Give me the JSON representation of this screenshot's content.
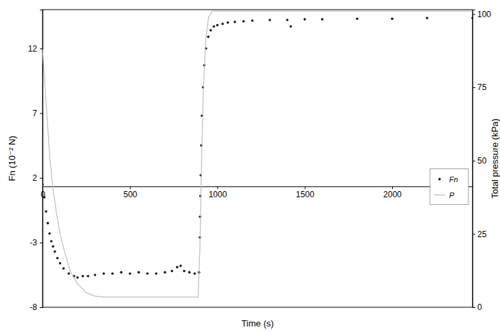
{
  "chart_data": {
    "type": "scatter",
    "x_label": "Time (s)",
    "y_label": "Fn (10⁻² N)",
    "y2_label": "Total pressure (kPa)",
    "xlim": [
      0,
      2460
    ],
    "xticks": [
      0,
      500,
      1000,
      1500,
      2000
    ],
    "ylim": [
      -8,
      15
    ],
    "yticks": [
      -8,
      -3,
      2,
      7,
      12
    ],
    "y2lim": [
      0,
      101.5
    ],
    "y2ticks": [
      0,
      25,
      50,
      75,
      100
    ],
    "grid": false,
    "legend": "right",
    "series": [
      {
        "name": "Fn",
        "type": "scatter",
        "color": "#1a1a1a",
        "marker": "circle",
        "x": [
          0,
          10,
          20,
          30,
          40,
          50,
          60,
          70,
          85,
          100,
          120,
          150,
          180,
          200,
          230,
          260,
          300,
          350,
          400,
          450,
          500,
          550,
          600,
          650,
          700,
          740,
          770,
          790,
          810,
          840,
          870,
          895,
          900,
          901,
          903,
          905,
          908,
          912,
          918,
          925,
          935,
          948,
          962,
          980,
          1000,
          1030,
          1060,
          1100,
          1150,
          1200,
          1300,
          1400,
          1420,
          1500,
          1600,
          1800,
          2000,
          2200,
          2460
        ],
        "values": [
          1.5,
          0.5,
          -0.6,
          -1.5,
          -2.3,
          -2.9,
          -3.3,
          -3.7,
          -4.2,
          -4.6,
          -5.0,
          -5.4,
          -5.6,
          -5.7,
          -5.6,
          -5.6,
          -5.5,
          -5.4,
          -5.4,
          -5.3,
          -5.4,
          -5.3,
          -5.4,
          -5.4,
          -5.3,
          -5.2,
          -4.9,
          -4.8,
          -5.2,
          -5.3,
          -5.4,
          -5.3,
          -2.6,
          -1.0,
          0.6,
          2.2,
          4.5,
          6.8,
          9.0,
          10.7,
          12.0,
          12.9,
          13.4,
          13.7,
          13.8,
          13.9,
          14.0,
          14.05,
          14.1,
          14.15,
          14.2,
          14.2,
          13.7,
          14.25,
          14.25,
          14.3,
          14.3,
          14.35,
          14.35
        ]
      },
      {
        "name": "P",
        "type": "line",
        "color": "#bdbdbd",
        "axis": "y2",
        "line_style": "solid",
        "x": [
          0,
          20,
          40,
          60,
          80,
          100,
          130,
          160,
          200,
          250,
          300,
          350,
          890,
          900,
          910,
          920,
          935,
          950,
          970,
          2460
        ],
        "values": [
          88,
          70,
          52,
          40,
          32,
          25,
          18,
          12,
          8,
          5,
          3.8,
          3.5,
          3.5,
          20,
          50,
          75,
          92,
          99,
          101,
          101
        ]
      }
    ]
  }
}
